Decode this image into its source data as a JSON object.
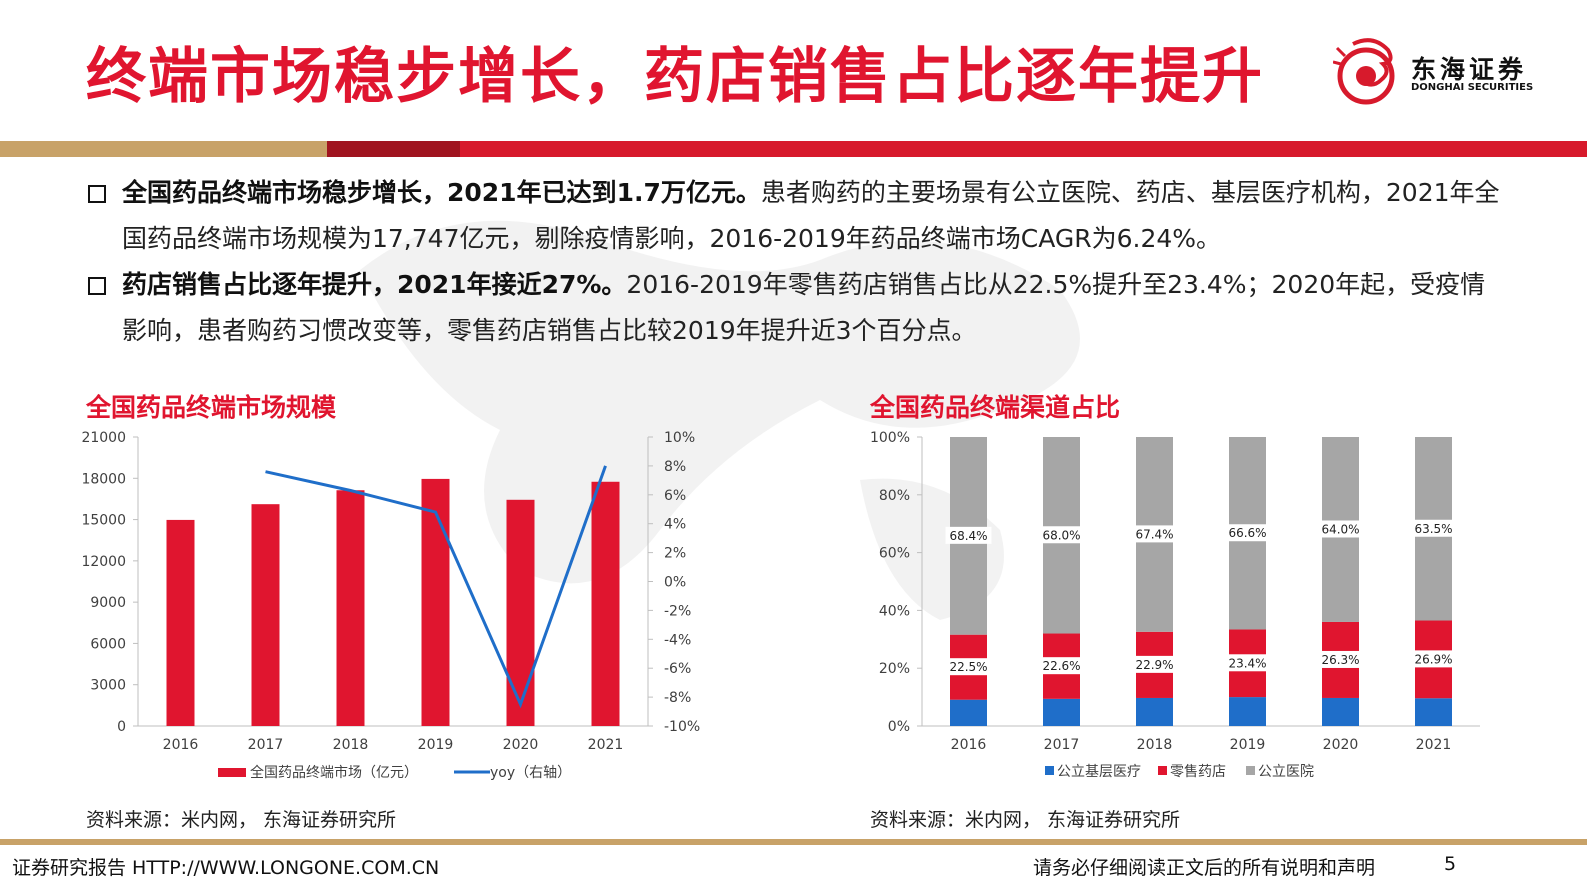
{
  "header": {
    "title": "终端市场稳步增长，药店销售占比逐年提升",
    "logo_cn": "东海证券",
    "logo_en": "DONGHAI SECURITIES"
  },
  "bullets": [
    {
      "bold": "全国药品终端市场稳步增长，2021年已达到1.7万亿元。",
      "text": "患者购药的主要场景有公立医院、药店、基层医疗机构，2021年全国药品终端市场规模为17,747亿元，剔除疫情影响，2016-2019年药品终端市场CAGR为6.24%。"
    },
    {
      "bold": "药店销售占比逐年提升，2021年接近27%。",
      "text": "2016-2019年零售药店销售占比从22.5%提升至23.4%；2020年起，受疫情影响，患者购药习惯改变等，零售药店销售占比较2019年提升近3个百分点。"
    }
  ],
  "chart_data": [
    {
      "type": "bar",
      "title": "全国药品终端市场规模",
      "categories": [
        "2016",
        "2017",
        "2018",
        "2019",
        "2020",
        "2021"
      ],
      "series": [
        {
          "name": "全国药品终端市场（亿元）",
          "type": "bar",
          "axis": "left",
          "values": [
            14975,
            16118,
            17131,
            17955,
            16437,
            17747
          ]
        },
        {
          "name": "yoy（右轴）",
          "type": "line",
          "axis": "right",
          "values": [
            null,
            7.6,
            6.3,
            4.8,
            -8.5,
            8.0
          ]
        }
      ],
      "ylim": [
        0,
        21000
      ],
      "yticks": [
        "21000",
        "18000",
        "15000",
        "12000",
        "9000",
        "6000",
        "3000",
        "0"
      ],
      "y2lim": [
        -10,
        10
      ],
      "y2ticks": [
        "10%",
        "8%",
        "6%",
        "4%",
        "2%",
        "0%",
        "-2%",
        "-4%",
        "-6%",
        "-8%",
        "-10%"
      ],
      "legend_position": "bottom",
      "colors": {
        "bar": "#e0152f",
        "line": "#1f6ec9"
      }
    },
    {
      "type": "bar",
      "stacked": true,
      "title": "全国药品终端渠道占比",
      "categories": [
        "2016",
        "2017",
        "2018",
        "2019",
        "2020",
        "2021"
      ],
      "series": [
        {
          "name": "公立基层医疗",
          "values": [
            9.1,
            9.4,
            9.7,
            10.0,
            9.7,
            9.6
          ],
          "color": "#1f6ec9"
        },
        {
          "name": "零售药店",
          "values": [
            22.5,
            22.6,
            22.9,
            23.4,
            26.3,
            26.9
          ],
          "color": "#e0152f"
        },
        {
          "name": "公立医院",
          "values": [
            68.4,
            68.0,
            67.4,
            66.6,
            64.0,
            63.5
          ],
          "color": "#a6a6a6"
        }
      ],
      "labels_retail": [
        "22.5%",
        "22.6%",
        "22.9%",
        "23.4%",
        "26.3%",
        "26.9%"
      ],
      "labels_hospital": [
        "68.4%",
        "68.0%",
        "67.4%",
        "66.6%",
        "64.0%",
        "63.5%"
      ],
      "ylim": [
        0,
        100
      ],
      "yticks": [
        "100%",
        "80%",
        "60%",
        "40%",
        "20%",
        "0%"
      ],
      "legend_position": "bottom"
    }
  ],
  "sources": {
    "left": "资料来源：米内网， 东海证券研究所",
    "right": "资料来源：米内网， 东海证券研究所"
  },
  "footer": {
    "left": "证券研究报告 HTTP://WWW.LONGONE.COM.CN",
    "center": "请务必仔细阅读正文后的所有说明和声明",
    "page": "5"
  }
}
